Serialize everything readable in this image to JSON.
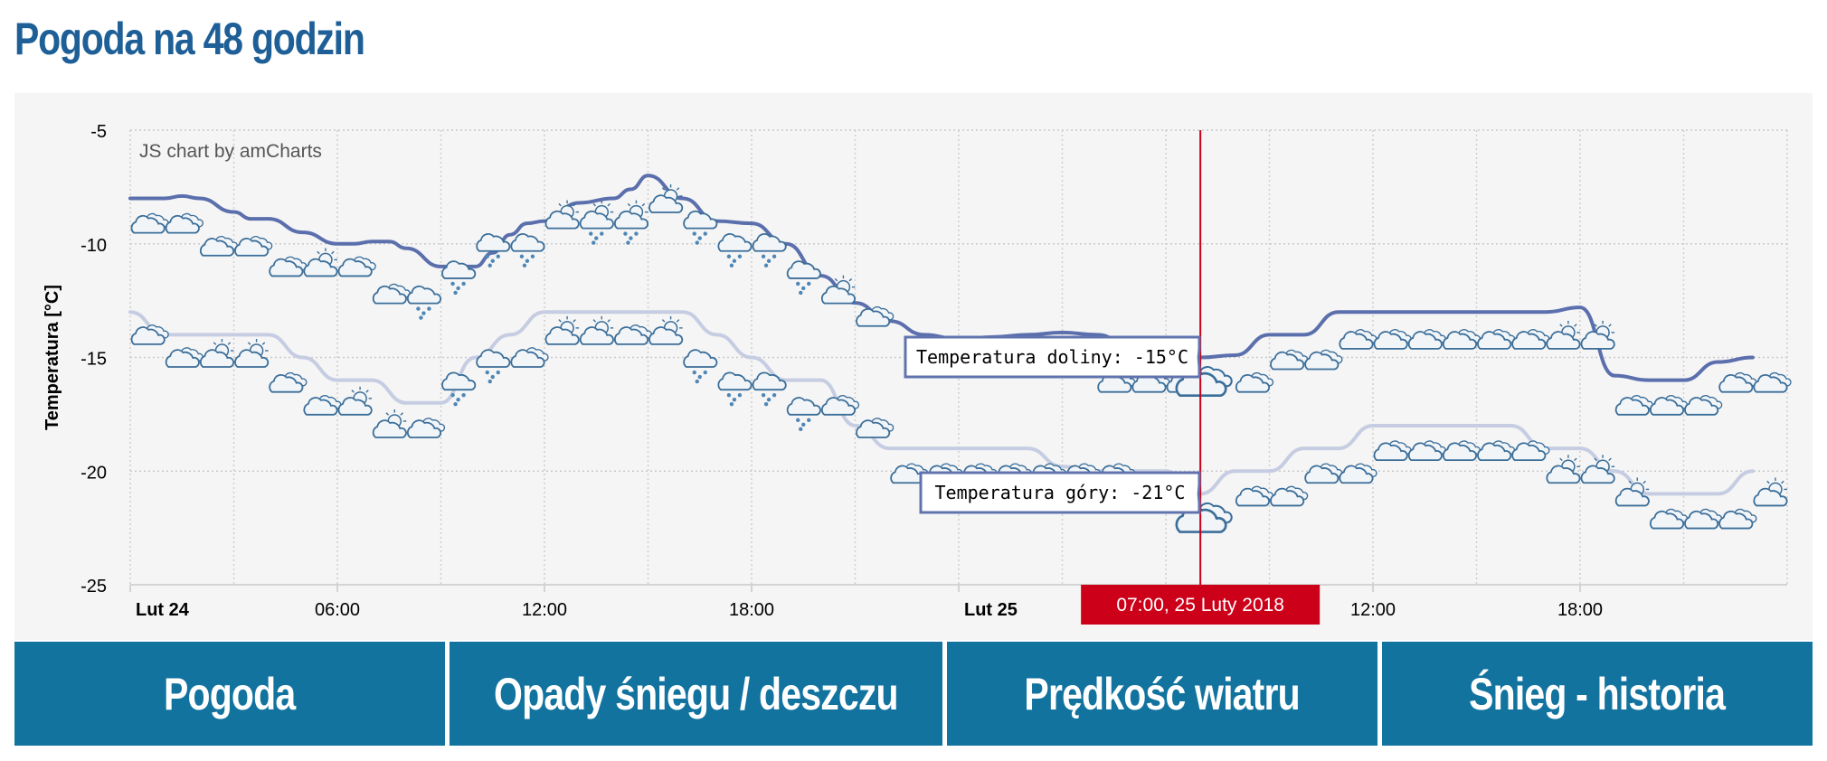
{
  "page": {
    "title": "Pogoda na 48 godzin"
  },
  "tabs": [
    {
      "label": "Pogoda"
    },
    {
      "label": "Opady śniegu / deszczu"
    },
    {
      "label": "Prędkość wiatru"
    },
    {
      "label": "Śnieg - historia"
    }
  ],
  "chart_data": {
    "type": "line",
    "credit": "JS chart by amCharts",
    "ylabel": "Temperatura [°C]",
    "xlabel": "",
    "ylim": [
      -25,
      -5
    ],
    "yticks": [
      -5,
      -10,
      -15,
      -20,
      -25
    ],
    "xlim": [
      0,
      48
    ],
    "x_ticks": [
      {
        "x": 0,
        "label": "Lut 24",
        "bold": true
      },
      {
        "x": 6,
        "label": "06:00",
        "bold": false
      },
      {
        "x": 12,
        "label": "12:00",
        "bold": false
      },
      {
        "x": 18,
        "label": "18:00",
        "bold": false
      },
      {
        "x": 24,
        "label": "Lut 25",
        "bold": true
      },
      {
        "x": 36,
        "label": "12:00",
        "bold": false
      },
      {
        "x": 42,
        "label": "18:00",
        "bold": false
      }
    ],
    "grid": true,
    "cursor": {
      "x": 31,
      "label": "07:00, 25 Luty 2018",
      "color": "#cc0019"
    },
    "series": [
      {
        "name": "Temperatura doliny",
        "color": "#5b6fad",
        "balloon": "Temperatura doliny: -15°C",
        "x": [
          0,
          1,
          1.5,
          2,
          3,
          3.5,
          4,
          5,
          6,
          6.5,
          7,
          7.5,
          8,
          9,
          10,
          10.5,
          11,
          11.5,
          12,
          13,
          14,
          14.5,
          15,
          16,
          17,
          18,
          19,
          20,
          21,
          22,
          23,
          24,
          25,
          26,
          27,
          28,
          29,
          30,
          31,
          32,
          33,
          34,
          35,
          36,
          37,
          38,
          39,
          40,
          41,
          42,
          43,
          44,
          45,
          46,
          47
        ],
        "values": [
          -8,
          -8,
          -7.9,
          -8,
          -8.6,
          -8.9,
          -8.9,
          -9.5,
          -10,
          -10,
          -9.9,
          -9.9,
          -10.2,
          -11,
          -11,
          -10.4,
          -9.6,
          -9.1,
          -9,
          -8.2,
          -8,
          -7.6,
          -7,
          -8,
          -9,
          -9.1,
          -10,
          -11.4,
          -12.6,
          -13.4,
          -14,
          -14.2,
          -14.1,
          -14,
          -13.9,
          -14,
          -14.5,
          -15,
          -15,
          -14.9,
          -14,
          -14,
          -13,
          -13,
          -13,
          -13,
          -13,
          -13,
          -13,
          -12.8,
          -15.8,
          -16,
          -16,
          -15.2,
          -15
        ],
        "icons": [
          {
            "x": 0.5,
            "y": -9.2,
            "kind": "cloudy"
          },
          {
            "x": 1.5,
            "y": -9.2,
            "kind": "cloudy"
          },
          {
            "x": 2.5,
            "y": -10.2,
            "kind": "cloudy"
          },
          {
            "x": 3.5,
            "y": -10.2,
            "kind": "cloudy"
          },
          {
            "x": 4.5,
            "y": -11.1,
            "kind": "cloudy"
          },
          {
            "x": 5.5,
            "y": -11.1,
            "kind": "sun-cloud"
          },
          {
            "x": 6.5,
            "y": -11.1,
            "kind": "cloudy"
          },
          {
            "x": 7.5,
            "y": -12.3,
            "kind": "cloudy"
          },
          {
            "x": 8.5,
            "y": -12.3,
            "kind": "snow"
          },
          {
            "x": 9.5,
            "y": -11.2,
            "kind": "snow"
          },
          {
            "x": 10.5,
            "y": -10,
            "kind": "snow"
          },
          {
            "x": 11.5,
            "y": -10,
            "kind": "snow"
          },
          {
            "x": 12.5,
            "y": -9,
            "kind": "sun-cloud"
          },
          {
            "x": 13.5,
            "y": -9,
            "kind": "sun-snow"
          },
          {
            "x": 14.5,
            "y": -9,
            "kind": "sun-snow"
          },
          {
            "x": 15.5,
            "y": -8.3,
            "kind": "sun-cloud"
          },
          {
            "x": 16.5,
            "y": -9,
            "kind": "snow"
          },
          {
            "x": 17.5,
            "y": -10,
            "kind": "snow"
          },
          {
            "x": 18.5,
            "y": -10,
            "kind": "snow"
          },
          {
            "x": 19.5,
            "y": -11.2,
            "kind": "snow"
          },
          {
            "x": 20.5,
            "y": -12.3,
            "kind": "sun-cloud"
          },
          {
            "x": 21.5,
            "y": -13.3,
            "kind": "cloudy"
          },
          {
            "x": 28.5,
            "y": -16.2,
            "kind": "cloudy"
          },
          {
            "x": 29.5,
            "y": -16.2,
            "kind": "cloudy"
          },
          {
            "x": 30.5,
            "y": -16.2,
            "kind": "cloudy"
          },
          {
            "x": 31,
            "y": -16.2,
            "kind": "cloudy-hover"
          },
          {
            "x": 32.5,
            "y": -16.2,
            "kind": "cloudy"
          },
          {
            "x": 33.5,
            "y": -15.2,
            "kind": "cloudy"
          },
          {
            "x": 34.5,
            "y": -15.2,
            "kind": "cloudy"
          },
          {
            "x": 35.5,
            "y": -14.3,
            "kind": "cloudy"
          },
          {
            "x": 36.5,
            "y": -14.3,
            "kind": "cloudy"
          },
          {
            "x": 37.5,
            "y": -14.3,
            "kind": "cloudy"
          },
          {
            "x": 38.5,
            "y": -14.3,
            "kind": "cloudy"
          },
          {
            "x": 39.5,
            "y": -14.3,
            "kind": "cloudy"
          },
          {
            "x": 40.5,
            "y": -14.3,
            "kind": "cloudy"
          },
          {
            "x": 41.5,
            "y": -14.3,
            "kind": "sun-cloud"
          },
          {
            "x": 42.5,
            "y": -14.3,
            "kind": "sun-cloud"
          },
          {
            "x": 43.5,
            "y": -17.2,
            "kind": "cloudy"
          },
          {
            "x": 44.5,
            "y": -17.2,
            "kind": "cloudy"
          },
          {
            "x": 45.5,
            "y": -17.2,
            "kind": "cloudy"
          },
          {
            "x": 46.5,
            "y": -16.2,
            "kind": "cloudy"
          },
          {
            "x": 47.5,
            "y": -16.2,
            "kind": "cloudy"
          }
        ]
      },
      {
        "name": "Temperatura góry",
        "color": "#c6cde2",
        "balloon": "Temperatura góry: -21°C",
        "x": [
          0,
          1,
          2,
          3,
          4,
          5,
          6,
          7,
          8,
          9,
          10,
          11,
          12,
          13,
          14,
          15,
          16,
          17,
          18,
          19,
          20,
          21,
          22,
          23,
          24,
          25,
          26,
          27,
          28,
          29,
          30,
          31,
          32,
          33,
          34,
          35,
          36,
          37,
          38,
          39,
          40,
          41,
          42,
          43,
          44,
          45,
          46,
          47
        ],
        "values": [
          -13,
          -14,
          -14,
          -14,
          -14,
          -15,
          -16,
          -16,
          -17,
          -17,
          -15,
          -14,
          -13,
          -13,
          -13,
          -13,
          -13,
          -14,
          -15,
          -16,
          -16,
          -18,
          -19,
          -19,
          -19,
          -19,
          -19,
          -19.8,
          -20,
          -20,
          -20,
          -21,
          -20,
          -20,
          -19,
          -19,
          -18,
          -18,
          -18,
          -18,
          -18,
          -19,
          -19,
          -20,
          -21,
          -21,
          -21,
          -20
        ],
        "icons": [
          {
            "x": 0.5,
            "y": -14.1,
            "kind": "cloudy"
          },
          {
            "x": 1.5,
            "y": -15.1,
            "kind": "cloudy"
          },
          {
            "x": 2.5,
            "y": -15.1,
            "kind": "sun-cloud"
          },
          {
            "x": 3.5,
            "y": -15.1,
            "kind": "sun-cloud"
          },
          {
            "x": 4.5,
            "y": -16.2,
            "kind": "cloudy"
          },
          {
            "x": 5.5,
            "y": -17.2,
            "kind": "cloudy"
          },
          {
            "x": 6.5,
            "y": -17.2,
            "kind": "sun-cloud"
          },
          {
            "x": 7.5,
            "y": -18.2,
            "kind": "sun-cloud"
          },
          {
            "x": 8.5,
            "y": -18.2,
            "kind": "cloudy"
          },
          {
            "x": 9.5,
            "y": -16.1,
            "kind": "snow"
          },
          {
            "x": 10.5,
            "y": -15.1,
            "kind": "snow"
          },
          {
            "x": 11.5,
            "y": -15.1,
            "kind": "cloudy"
          },
          {
            "x": 12.5,
            "y": -14.1,
            "kind": "sun-cloud"
          },
          {
            "x": 13.5,
            "y": -14.1,
            "kind": "sun-cloud"
          },
          {
            "x": 14.5,
            "y": -14.1,
            "kind": "cloudy"
          },
          {
            "x": 15.5,
            "y": -14.1,
            "kind": "sun-cloud"
          },
          {
            "x": 16.5,
            "y": -15.1,
            "kind": "snow"
          },
          {
            "x": 17.5,
            "y": -16.1,
            "kind": "snow"
          },
          {
            "x": 18.5,
            "y": -16.1,
            "kind": "snow"
          },
          {
            "x": 19.5,
            "y": -17.2,
            "kind": "snow"
          },
          {
            "x": 20.5,
            "y": -17.2,
            "kind": "cloudy"
          },
          {
            "x": 21.5,
            "y": -18.2,
            "kind": "cloudy"
          },
          {
            "x": 22.5,
            "y": -20.2,
            "kind": "cloudy"
          },
          {
            "x": 23.5,
            "y": -20.2,
            "kind": "cloudy"
          },
          {
            "x": 24.5,
            "y": -20.2,
            "kind": "cloudy"
          },
          {
            "x": 25.5,
            "y": -20.2,
            "kind": "cloudy"
          },
          {
            "x": 26.5,
            "y": -20.2,
            "kind": "cloudy"
          },
          {
            "x": 27.5,
            "y": -20.2,
            "kind": "cloudy"
          },
          {
            "x": 28.5,
            "y": -20.2,
            "kind": "cloudy"
          },
          {
            "x": 31,
            "y": -22.2,
            "kind": "cloudy-hover"
          },
          {
            "x": 32.5,
            "y": -21.2,
            "kind": "cloudy"
          },
          {
            "x": 33.5,
            "y": -21.2,
            "kind": "cloudy"
          },
          {
            "x": 34.5,
            "y": -20.2,
            "kind": "cloudy"
          },
          {
            "x": 35.5,
            "y": -20.2,
            "kind": "cloudy"
          },
          {
            "x": 36.5,
            "y": -19.2,
            "kind": "cloudy"
          },
          {
            "x": 37.5,
            "y": -19.2,
            "kind": "cloudy"
          },
          {
            "x": 38.5,
            "y": -19.2,
            "kind": "cloudy"
          },
          {
            "x": 39.5,
            "y": -19.2,
            "kind": "cloudy"
          },
          {
            "x": 40.5,
            "y": -19.2,
            "kind": "cloudy"
          },
          {
            "x": 41.5,
            "y": -20.2,
            "kind": "sun-cloud"
          },
          {
            "x": 42.5,
            "y": -20.2,
            "kind": "sun-cloud"
          },
          {
            "x": 43.5,
            "y": -21.2,
            "kind": "sun-cloud"
          },
          {
            "x": 44.5,
            "y": -22.2,
            "kind": "cloudy"
          },
          {
            "x": 45.5,
            "y": -22.2,
            "kind": "cloudy"
          },
          {
            "x": 46.5,
            "y": -22.2,
            "kind": "cloudy"
          },
          {
            "x": 47.5,
            "y": -21.2,
            "kind": "sun-cloud"
          }
        ]
      }
    ]
  }
}
